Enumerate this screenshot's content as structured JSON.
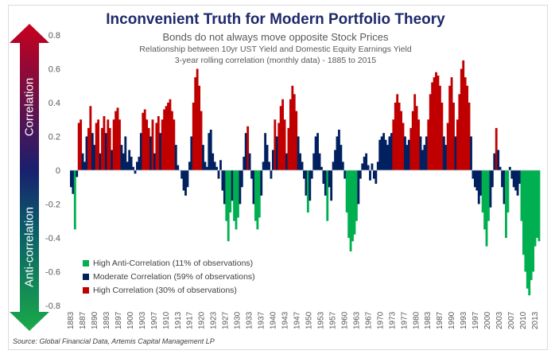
{
  "chart_data": {
    "type": "bar",
    "title": "Inconvenient Truth for Modern Portfolio Theory",
    "subtitle": "Bonds do not always move opposite Stock Prices",
    "subtitle2": "Relationship between 10yr UST Yield and Domestic Equity Earnings Yield",
    "subtitle3": "3-year rolling correlation (monthly data) - 1885 to 2015",
    "xlabel": "",
    "ylabel": "",
    "ylim": [
      -0.8,
      0.8
    ],
    "yticks": [
      "0.8",
      "0.6",
      "0.4",
      "0.2",
      "0",
      "-0.2",
      "-0.4",
      "-0.6",
      "-0.8"
    ],
    "ytick_values": [
      0.8,
      0.6,
      0.4,
      0.2,
      0,
      -0.2,
      -0.4,
      -0.6,
      -0.8
    ],
    "xticks": [
      "1883",
      "1887",
      "1890",
      "1893",
      "1897",
      "1900",
      "1903",
      "1907",
      "1910",
      "1913",
      "1917",
      "1920",
      "1923",
      "1927",
      "1930",
      "1933",
      "1937",
      "1940",
      "1943",
      "1947",
      "1950",
      "1953",
      "1957",
      "1960",
      "1963",
      "1967",
      "1970",
      "1973",
      "1977",
      "1980",
      "1983",
      "1987",
      "1990",
      "1993",
      "1997",
      "2000",
      "2003",
      "2007",
      "2010",
      "2013"
    ],
    "x_start": 1883.0,
    "x_end": 2015.0,
    "step_years": 0.5,
    "thresholds": {
      "high_correlation": 0.25,
      "high_anti_correlation": -0.25
    },
    "legend": [
      {
        "name": "High Anti-Correlation (11% of observations)",
        "color": "#00b050"
      },
      {
        "name": "Moderate Correlation (59% of observations)",
        "color": "#002060"
      },
      {
        "name": "High Correlation (30% of observations)",
        "color": "#c00000"
      }
    ],
    "legend_position": "bottom-left",
    "values": [
      -0.1,
      -0.14,
      -0.35,
      -0.04,
      0.28,
      0.3,
      0.1,
      0.05,
      0.2,
      0.25,
      0.38,
      0.22,
      0.15,
      0.28,
      0.3,
      0.1,
      0.25,
      0.32,
      0.22,
      0.3,
      0.25,
      0.12,
      0.3,
      0.35,
      0.37,
      0.3,
      0.15,
      0.1,
      0.2,
      0.05,
      0.12,
      0.08,
      0.02,
      -0.02,
      0.05,
      0.08,
      0.22,
      0.34,
      0.36,
      0.3,
      0.25,
      0.2,
      0.3,
      0.1,
      0.28,
      0.32,
      0.22,
      0.3,
      0.36,
      0.38,
      0.4,
      0.42,
      0.35,
      0.3,
      0.15,
      0.03,
      0.0,
      -0.05,
      -0.12,
      -0.15,
      -0.1,
      0.05,
      0.2,
      0.4,
      0.55,
      0.6,
      0.5,
      0.35,
      0.15,
      0.05,
      0.02,
      0.22,
      0.24,
      0.1,
      0.05,
      0.02,
      -0.05,
      0.06,
      -0.12,
      -0.2,
      -0.3,
      -0.42,
      -0.25,
      -0.18,
      -0.3,
      -0.35,
      -0.28,
      -0.2,
      -0.1,
      0.08,
      0.22,
      0.26,
      0.1,
      -0.05,
      -0.2,
      -0.3,
      -0.35,
      -0.28,
      -0.15,
      0.05,
      0.22,
      0.15,
      0.05,
      -0.05,
      0.12,
      0.3,
      0.2,
      0.28,
      0.38,
      0.42,
      0.3,
      0.1,
      0.25,
      0.42,
      0.5,
      0.45,
      0.35,
      0.2,
      0.1,
      0.05,
      -0.05,
      -0.15,
      -0.25,
      -0.18,
      -0.05,
      0.1,
      0.2,
      0.22,
      0.1,
      0.02,
      -0.08,
      -0.15,
      -0.3,
      -0.1,
      -0.18,
      0.05,
      0.12,
      0.2,
      0.24,
      0.15,
      0.05,
      -0.05,
      -0.25,
      -0.4,
      -0.48,
      -0.42,
      -0.38,
      -0.3,
      -0.2,
      -0.05,
      0.04,
      0.08,
      0.1,
      0.03,
      -0.06,
      0.04,
      -0.05,
      -0.08,
      0.05,
      0.18,
      0.2,
      0.22,
      0.18,
      0.15,
      0.2,
      0.22,
      0.3,
      0.4,
      0.45,
      0.4,
      0.35,
      0.28,
      0.2,
      0.15,
      0.18,
      0.25,
      0.35,
      0.45,
      0.38,
      0.3,
      0.2,
      0.12,
      0.15,
      0.2,
      0.3,
      0.45,
      0.52,
      0.55,
      0.58,
      0.56,
      0.5,
      0.4,
      0.2,
      0.15,
      0.28,
      0.5,
      0.55,
      0.4,
      0.2,
      0.3,
      0.45,
      0.6,
      0.65,
      0.55,
      0.5,
      0.4,
      0.2,
      -0.05,
      -0.1,
      -0.12,
      -0.2,
      -0.15,
      -0.25,
      -0.35,
      -0.45,
      -0.3,
      -0.22,
      -0.1,
      0.1,
      0.25,
      0.12,
      0.02,
      -0.1,
      -0.2,
      -0.4,
      -0.25,
      0.02,
      -0.05,
      -0.1,
      -0.12,
      -0.15,
      -0.08,
      -0.3,
      -0.5,
      -0.6,
      -0.7,
      -0.74,
      -0.65,
      -0.6,
      -0.45,
      -0.4,
      -0.42
    ]
  },
  "arrows": {
    "up_label": "Correlation",
    "down_label": "Anti-correlation"
  },
  "source": "Source: Global Financial Data, Artemis Capital Management LP",
  "colors": {
    "high_correlation": "#c00000",
    "moderate": "#002060",
    "high_anti_correlation": "#00b050",
    "title": "#1f2a6b"
  }
}
